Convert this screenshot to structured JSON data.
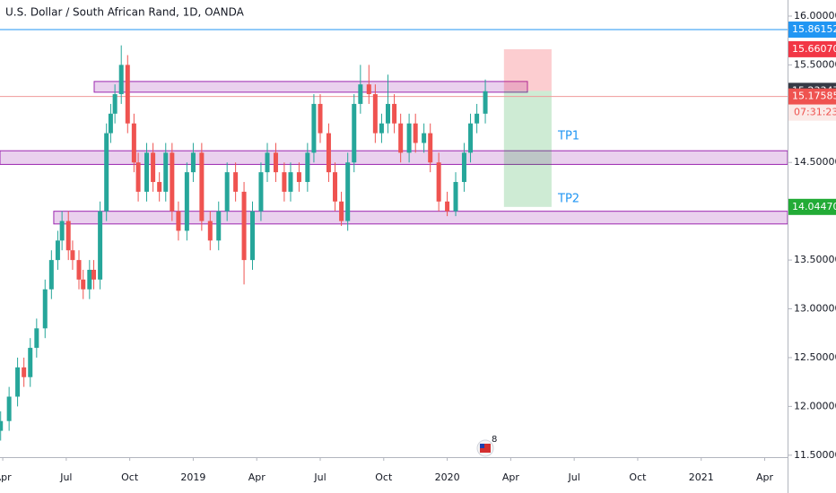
{
  "chart_data": {
    "type": "candlestick",
    "title": "U.S. Dollar / South African Rand, 1D, OANDA",
    "xlim": [
      2.87,
      40.08
    ],
    "ylim": [
      11.48,
      16.165
    ],
    "xticks": [
      {
        "value": 3,
        "label": "Apr"
      },
      {
        "value": 6,
        "label": "Jul"
      },
      {
        "value": 9,
        "label": "Oct"
      },
      {
        "value": 12,
        "label": "2019"
      },
      {
        "value": 15,
        "label": "Apr"
      },
      {
        "value": 18,
        "label": "Jul"
      },
      {
        "value": 21,
        "label": "Oct"
      },
      {
        "value": 24,
        "label": "2020"
      },
      {
        "value": 27,
        "label": "Apr"
      },
      {
        "value": 30,
        "label": "Jul"
      },
      {
        "value": 33,
        "label": "Oct"
      },
      {
        "value": 36,
        "label": "2021"
      },
      {
        "value": 39,
        "label": "Apr"
      }
    ],
    "yticks": [
      {
        "value": 16,
        "label": "16.00000"
      },
      {
        "value": 15.5,
        "label": "15.50000"
      },
      {
        "value": 14.5,
        "label": "14.50000"
      },
      {
        "value": 13.5,
        "label": "13.50000"
      },
      {
        "value": 13,
        "label": "13.00000"
      },
      {
        "value": 12.5,
        "label": "12.50000"
      },
      {
        "value": 12,
        "label": "12.00000"
      },
      {
        "value": 11.5,
        "label": "11.50000"
      }
    ],
    "up_color": "#26a69a",
    "down_color": "#ef5350",
    "x": [
      2.9,
      3.3,
      3.7,
      4.0,
      4.3,
      4.6,
      5.0,
      5.3,
      5.6,
      5.8,
      6.1,
      6.3,
      6.6,
      6.8,
      7.1,
      7.3,
      7.6,
      7.9,
      8.1,
      8.3,
      8.6,
      8.9,
      9.2,
      9.4,
      9.8,
      10.1,
      10.4,
      10.7,
      11.0,
      11.3,
      11.7,
      12.0,
      12.4,
      12.8,
      13.2,
      13.6,
      14.0,
      14.4,
      14.8,
      15.2,
      15.5,
      15.9,
      16.3,
      16.6,
      17.0,
      17.4,
      17.7,
      18.0,
      18.4,
      18.7,
      19.0,
      19.3,
      19.6,
      19.9,
      20.3,
      20.6,
      20.9,
      21.2,
      21.5,
      21.8,
      22.2,
      22.5,
      22.9,
      23.2,
      23.6,
      24.0,
      24.4,
      24.8,
      25.1,
      25.4,
      25.8
    ],
    "open": [
      11.75,
      11.85,
      12.1,
      12.4,
      12.3,
      12.6,
      12.8,
      13.2,
      13.5,
      13.7,
      13.9,
      13.6,
      13.5,
      13.3,
      13.2,
      13.4,
      13.3,
      14.0,
      14.8,
      15.0,
      15.2,
      15.5,
      14.9,
      14.5,
      14.2,
      14.6,
      14.3,
      14.2,
      14.6,
      14.0,
      13.8,
      14.4,
      14.6,
      13.9,
      13.7,
      14.0,
      14.4,
      14.2,
      13.5,
      14.0,
      14.4,
      14.6,
      14.4,
      14.2,
      14.4,
      14.3,
      14.6,
      15.1,
      14.8,
      14.4,
      14.1,
      13.9,
      14.5,
      15.1,
      15.3,
      15.2,
      14.8,
      14.9,
      15.1,
      14.9,
      14.6,
      14.9,
      14.7,
      14.8,
      14.5,
      14.1,
      14.0,
      14.3,
      14.6,
      14.9,
      15.0
    ],
    "high": [
      11.95,
      12.2,
      12.5,
      12.5,
      12.7,
      12.9,
      13.3,
      13.6,
      13.8,
      14.0,
      14.0,
      13.7,
      13.6,
      13.4,
      13.5,
      13.5,
      14.1,
      14.9,
      15.1,
      15.3,
      15.7,
      15.6,
      15.0,
      14.6,
      14.7,
      14.7,
      14.4,
      14.7,
      14.7,
      14.1,
      14.5,
      14.7,
      14.7,
      14.0,
      14.1,
      14.5,
      14.5,
      14.3,
      14.1,
      14.5,
      14.7,
      14.7,
      14.5,
      14.5,
      14.5,
      14.7,
      15.2,
      15.2,
      14.9,
      14.5,
      14.2,
      14.6,
      15.2,
      15.5,
      15.5,
      15.3,
      15.0,
      15.4,
      15.2,
      15.0,
      15.0,
      15.0,
      14.9,
      14.9,
      14.6,
      14.2,
      14.4,
      14.7,
      15.0,
      15.1,
      15.35
    ],
    "low": [
      11.65,
      11.75,
      12.0,
      12.2,
      12.2,
      12.5,
      12.7,
      13.1,
      13.4,
      13.6,
      13.5,
      13.4,
      13.2,
      13.1,
      13.1,
      13.2,
      13.2,
      13.9,
      14.7,
      14.9,
      15.1,
      14.8,
      14.4,
      14.1,
      14.1,
      14.2,
      14.1,
      14.1,
      13.9,
      13.7,
      13.7,
      14.3,
      13.8,
      13.6,
      13.6,
      13.9,
      14.1,
      13.25,
      13.4,
      13.9,
      14.3,
      14.3,
      14.1,
      14.1,
      14.2,
      14.2,
      14.5,
      14.7,
      14.3,
      14.0,
      13.85,
      13.8,
      14.4,
      15.0,
      15.1,
      14.7,
      14.7,
      14.8,
      14.8,
      14.5,
      14.5,
      14.6,
      14.6,
      14.4,
      14.0,
      13.95,
      13.95,
      14.2,
      14.5,
      14.8,
      14.9
    ],
    "close": [
      11.85,
      12.1,
      12.4,
      12.3,
      12.6,
      12.8,
      13.2,
      13.5,
      13.7,
      13.9,
      13.6,
      13.5,
      13.3,
      13.2,
      13.4,
      13.3,
      14.0,
      14.8,
      15.0,
      15.2,
      15.5,
      14.9,
      14.5,
      14.2,
      14.6,
      14.3,
      14.2,
      14.6,
      14.0,
      13.8,
      14.4,
      14.6,
      13.9,
      13.7,
      14.0,
      14.4,
      14.2,
      13.5,
      14.0,
      14.4,
      14.6,
      14.4,
      14.2,
      14.4,
      14.3,
      14.6,
      15.1,
      14.8,
      14.4,
      14.1,
      13.9,
      14.5,
      15.1,
      15.3,
      15.2,
      14.8,
      14.9,
      15.1,
      14.9,
      14.6,
      14.9,
      14.7,
      14.8,
      14.5,
      14.1,
      14.0,
      14.3,
      14.6,
      14.9,
      15.0,
      15.23
    ],
    "zones": [
      {
        "x0": 7.32,
        "x1": 27.79,
        "top": 15.33,
        "bottom": 15.22
      },
      {
        "x0": 2.87,
        "x1": 40.08,
        "top": 14.62,
        "bottom": 14.48
      },
      {
        "x0": 5.41,
        "x1": 40.08,
        "top": 14.0,
        "bottom": 13.87
      }
    ],
    "position": {
      "x0": 26.68,
      "x1": 28.93,
      "stop": 15.6607,
      "entry": 15.23347,
      "target": 14.0447
    },
    "annotations": [
      "TP1",
      "TP2"
    ],
    "lines": [
      {
        "value": 15.86152,
        "color": "#2196f3"
      },
      {
        "value": 15.17585,
        "color": "#ef9a9a"
      }
    ],
    "price_labels": [
      {
        "value": 15.86152,
        "label": "15.86152",
        "color": "#2196f3"
      },
      {
        "value": 15.6607,
        "label": "15.66070",
        "color": "#f23645"
      },
      {
        "value": 15.23347,
        "label": "15.23347",
        "color": "#363a45"
      },
      {
        "value": 15.17585,
        "label": "15.17585",
        "color": "#ef5350"
      },
      {
        "value": 14.0447,
        "label": "14.04470",
        "color": "#22ab36"
      }
    ],
    "countdown": "07:31:23",
    "event_badge": "8"
  }
}
